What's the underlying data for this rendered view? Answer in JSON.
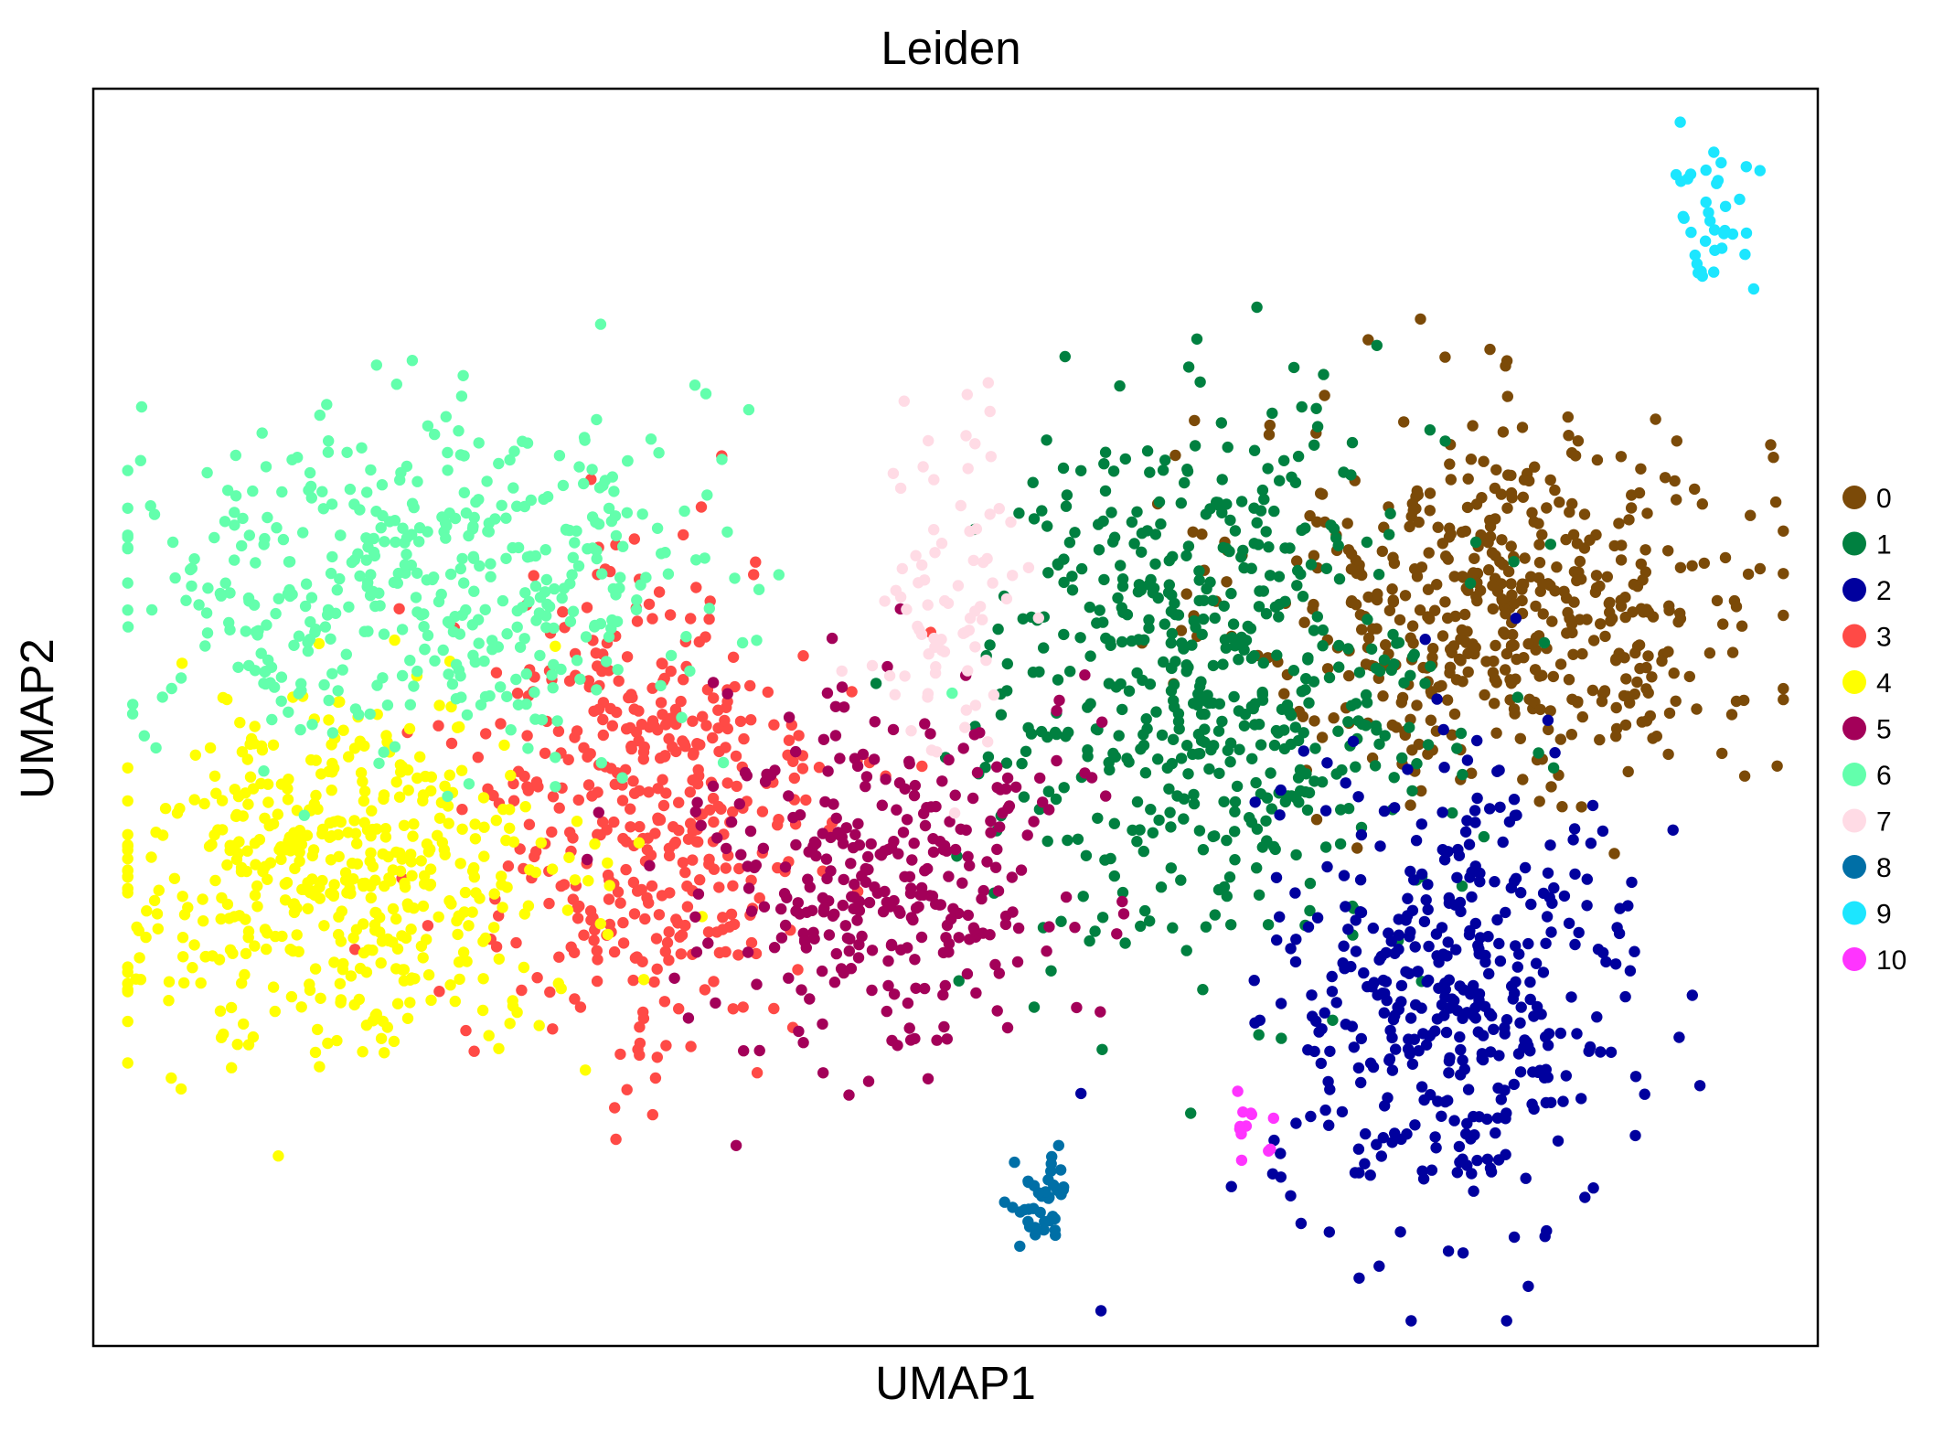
{
  "chart_data": {
    "type": "scatter",
    "title": "Leiden",
    "xlabel": "UMAP1",
    "ylabel": "UMAP2",
    "xlim": [
      0,
      100
    ],
    "ylim": [
      0,
      100
    ],
    "grid": false,
    "axis_ticks": false,
    "legend_position": "right",
    "series": [
      {
        "name": "0",
        "color": "#7b4a08",
        "count": 520,
        "center": [
          82,
          59
        ],
        "spread": [
          10,
          10
        ]
      },
      {
        "name": "1",
        "color": "#008040",
        "count": 560,
        "center": [
          65,
          53
        ],
        "spread": [
          9,
          14
        ]
      },
      {
        "name": "2",
        "color": "#00009e",
        "count": 430,
        "center": [
          79,
          28
        ],
        "spread": [
          7,
          12
        ]
      },
      {
        "name": "3",
        "color": "#ff4a46",
        "count": 430,
        "center": [
          32,
          42
        ],
        "spread": [
          7,
          14
        ]
      },
      {
        "name": "4",
        "color": "#ffff00",
        "count": 500,
        "center": [
          14,
          37
        ],
        "spread": [
          9,
          9
        ]
      },
      {
        "name": "5",
        "color": "#a30059",
        "count": 330,
        "center": [
          46,
          38
        ],
        "spread": [
          7,
          10
        ]
      },
      {
        "name": "6",
        "color": "#63ffac",
        "count": 460,
        "center": [
          19,
          61
        ],
        "spread": [
          11,
          9
        ]
      },
      {
        "name": "7",
        "color": "#ffdbe5",
        "count": 80,
        "center": [
          50,
          60
        ],
        "spread": [
          3,
          9
        ]
      },
      {
        "name": "8",
        "color": "#006fa6",
        "count": 40,
        "center": [
          55,
          11
        ],
        "spread": [
          1.2,
          2.5
        ]
      },
      {
        "name": "9",
        "color": "#1ce6ff",
        "count": 36,
        "center": [
          94,
          90
        ],
        "spread": [
          2,
          4
        ]
      },
      {
        "name": "10",
        "color": "#ff34ff",
        "count": 12,
        "center": [
          67,
          18
        ],
        "spread": [
          1.2,
          2
        ]
      }
    ]
  }
}
